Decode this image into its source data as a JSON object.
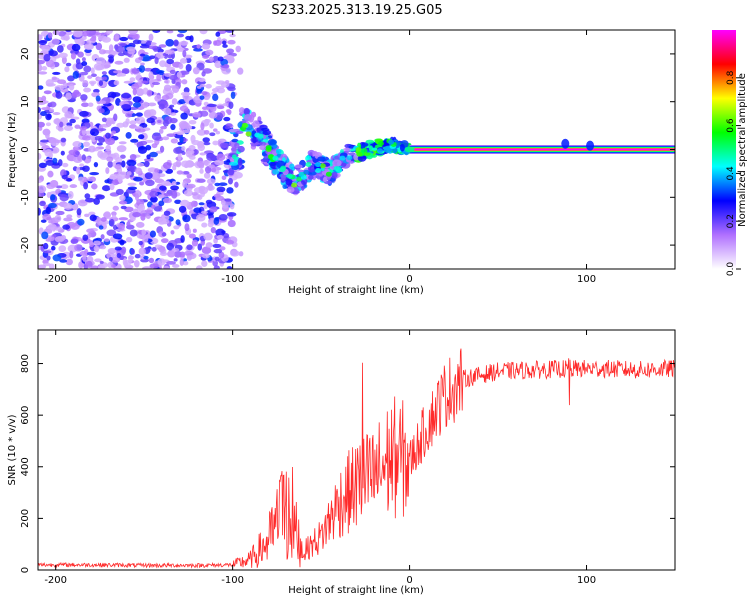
{
  "title": "S233.2025.313.19.25.G05",
  "chart_data": [
    {
      "type": "heatmap",
      "xlabel": "Height of straight line (km)",
      "ylabel": "Frequency (Hz)",
      "xlim": [
        -210,
        150
      ],
      "ylim": [
        -25,
        25
      ],
      "xticks": [
        -200,
        -100,
        0,
        100
      ],
      "yticks": [
        -20,
        -10,
        0,
        10,
        20
      ],
      "colorbar": {
        "label": "Normalized spectral amplitude",
        "range": [
          0,
          1
        ],
        "ticks": [
          "0.0",
          "0.2",
          "0.4",
          "0.6",
          "0.8"
        ],
        "tick_values": [
          0,
          0.2,
          0.4,
          0.6,
          0.8
        ],
        "colors": [
          "#ffffff",
          "#b070ff",
          "#0000ff",
          "#00ffff",
          "#00ff00",
          "#ffff00",
          "#ff0000",
          "#ff00ff"
        ]
      },
      "features": [
        {
          "name": "noise region",
          "x_range": [
            -210,
            -100
          ],
          "freq_range": [
            -25,
            25
          ],
          "amplitude": "0.05-0.3"
        },
        {
          "name": "transition scatter",
          "x_range": [
            -100,
            0
          ],
          "freq_path": [
            [
              -95,
              5
            ],
            [
              -85,
              3
            ],
            [
              -75,
              -3
            ],
            [
              -65,
              -7
            ],
            [
              -55,
              -3
            ],
            [
              -45,
              -5
            ],
            [
              -35,
              -1
            ],
            [
              -25,
              0
            ],
            [
              -10,
              1
            ],
            [
              0,
              0
            ]
          ],
          "amplitude": "0.2-0.6"
        },
        {
          "name": "carrier tone",
          "x_range": [
            0,
            150
          ],
          "frequency": 0,
          "amplitude": 1.0
        }
      ]
    },
    {
      "type": "line",
      "xlabel": "Height of straight line (km)",
      "ylabel": "SNR (10 * v/v)",
      "xlim": [
        -210,
        150
      ],
      "ylim": [
        0,
        930
      ],
      "xticks": [
        -200,
        -100,
        0,
        100
      ],
      "yticks": [
        0,
        200,
        400,
        600,
        800
      ],
      "color": "#ff2a2a",
      "series": [
        {
          "name": "SNR",
          "x": [
            -210,
            -180,
            -150,
            -120,
            -100,
            -90,
            -80,
            -70,
            -65,
            -60,
            -50,
            -40,
            -30,
            -20,
            -10,
            0,
            10,
            20,
            30,
            50,
            70,
            90,
            110,
            130,
            150
          ],
          "y": [
            20,
            20,
            18,
            18,
            20,
            40,
            110,
            240,
            160,
            70,
            130,
            260,
            330,
            360,
            440,
            420,
            560,
            680,
            740,
            770,
            775,
            780,
            780,
            775,
            780
          ]
        }
      ]
    }
  ]
}
